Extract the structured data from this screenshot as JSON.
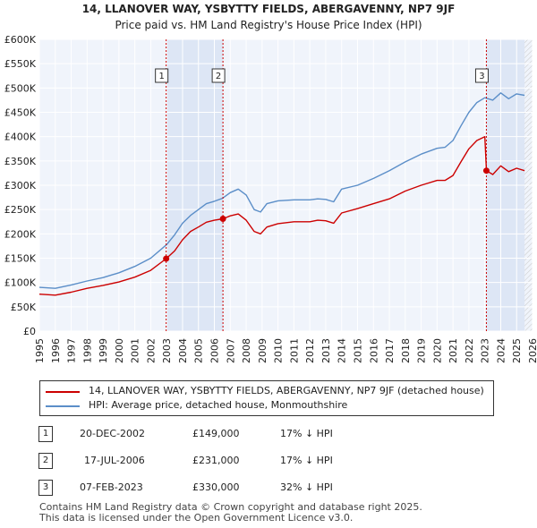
{
  "chart_data": {
    "type": "line",
    "title": "14, LLANOVER WAY, YSBYTTY FIELDS, ABERGAVENNY, NP7 9JF",
    "subtitle": "Price paid vs. HM Land Registry's House Price Index (HPI)",
    "xlim": [
      1995,
      2026
    ],
    "ylim": [
      0,
      600000
    ],
    "x_ticks": [
      1995,
      1996,
      1997,
      1998,
      1999,
      2000,
      2001,
      2002,
      2003,
      2004,
      2005,
      2006,
      2007,
      2008,
      2009,
      2010,
      2011,
      2012,
      2013,
      2014,
      2015,
      2016,
      2017,
      2018,
      2019,
      2020,
      2021,
      2022,
      2023,
      2024,
      2025,
      2026
    ],
    "y_ticks": [
      {
        "value": 0,
        "label": "£0"
      },
      {
        "value": 50000,
        "label": "£50K"
      },
      {
        "value": 100000,
        "label": "£100K"
      },
      {
        "value": 150000,
        "label": "£150K"
      },
      {
        "value": 200000,
        "label": "£200K"
      },
      {
        "value": 250000,
        "label": "£250K"
      },
      {
        "value": 300000,
        "label": "£300K"
      },
      {
        "value": 350000,
        "label": "£350K"
      },
      {
        "value": 400000,
        "label": "£400K"
      },
      {
        "value": 450000,
        "label": "£450K"
      },
      {
        "value": 500000,
        "label": "£500K"
      },
      {
        "value": 550000,
        "label": "£550K"
      },
      {
        "value": 600000,
        "label": "£600K"
      }
    ],
    "series": [
      {
        "name": "14, LLANOVER WAY, YSBYTTY FIELDS, ABERGAVENNY, NP7 9JF (detached house)",
        "color": "#cc0000",
        "x": [
          1995,
          1996,
          1997,
          1998,
          1999,
          2000,
          2001,
          2002,
          2002.97,
          2003.5,
          2004,
          2004.5,
          2005,
          2005.5,
          2006,
          2006.54,
          2007,
          2007.5,
          2008,
          2008.5,
          2008.9,
          2009.3,
          2010,
          2011,
          2012,
          2012.5,
          2013,
          2013.5,
          2014,
          2015,
          2016,
          2017,
          2018,
          2019,
          2020,
          2020.5,
          2021,
          2021.5,
          2022,
          2022.5,
          2023.0,
          2023.1,
          2023.5,
          2024,
          2024.5,
          2025,
          2025.5
        ],
        "y": [
          76000,
          74000,
          80000,
          88000,
          94000,
          101000,
          111000,
          125000,
          149000,
          165000,
          188000,
          205000,
          214000,
          224000,
          228000,
          231000,
          237000,
          241000,
          228000,
          205000,
          200000,
          214000,
          221000,
          225000,
          225000,
          228000,
          227000,
          222000,
          243000,
          252000,
          262000,
          272000,
          288000,
          300000,
          310000,
          310000,
          320000,
          348000,
          375000,
          392000,
          400000,
          330000,
          322000,
          340000,
          328000,
          335000,
          330000
        ]
      },
      {
        "name": "HPI: Average price, detached house, Monmouthshire",
        "color": "#5b8ec8",
        "x": [
          1995,
          1996,
          1997,
          1998,
          1999,
          2000,
          2001,
          2002,
          2003,
          2003.5,
          2004,
          2004.5,
          2005,
          2005.5,
          2006,
          2006.5,
          2007,
          2007.5,
          2008,
          2008.5,
          2008.9,
          2009.3,
          2010,
          2011,
          2012,
          2012.5,
          2013,
          2013.5,
          2014,
          2015,
          2016,
          2017,
          2018,
          2019,
          2020,
          2020.5,
          2021,
          2021.5,
          2022,
          2022.5,
          2023,
          2023.5,
          2024,
          2024.5,
          2025,
          2025.5
        ],
        "y": [
          90000,
          88000,
          95000,
          103000,
          110000,
          120000,
          133000,
          150000,
          178000,
          198000,
          222000,
          238000,
          250000,
          262000,
          267000,
          273000,
          285000,
          292000,
          280000,
          250000,
          245000,
          262000,
          268000,
          270000,
          270000,
          272000,
          271000,
          266000,
          292000,
          300000,
          314000,
          330000,
          348000,
          364000,
          376000,
          378000,
          392000,
          422000,
          450000,
          470000,
          480000,
          475000,
          490000,
          478000,
          488000,
          485000
        ]
      }
    ],
    "sales": [
      {
        "label": "1",
        "x": 2002.97,
        "y": 149000,
        "date": "20-DEC-2002",
        "price": "£149,000",
        "hpi": "17% ↓ HPI"
      },
      {
        "label": "2",
        "x": 2006.54,
        "y": 231000,
        "date": "17-JUL-2006",
        "price": "£231,000",
        "hpi": "17% ↓ HPI"
      },
      {
        "label": "3",
        "x": 2023.1,
        "y": 330000,
        "date": "07-FEB-2023",
        "price": "£330,000",
        "hpi": "32% ↓ HPI"
      }
    ],
    "legend": {
      "placement": "below"
    }
  },
  "footer": {
    "line1": "Contains HM Land Registry data © Crown copyright and database right 2025.",
    "line2": "This data is licensed under the Open Government Licence v3.0."
  },
  "colors": {
    "price_line": "#cc0000",
    "hpi_line": "#5b8ec8",
    "shade": "#dde6f5",
    "plot_bg": "#f0f4fb",
    "grid": "#ffffff"
  }
}
